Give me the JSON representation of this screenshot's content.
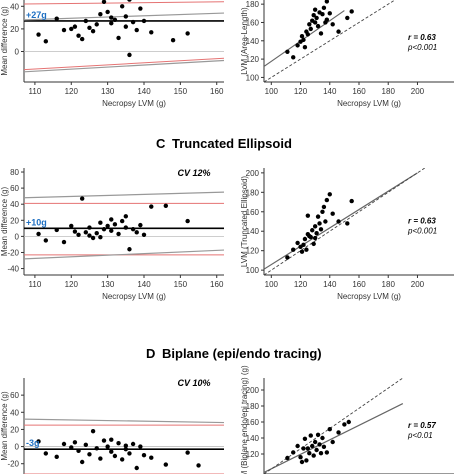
{
  "sections": [
    {
      "letter": "",
      "title": ""
    },
    {
      "letter": "C",
      "title": "Truncated Ellipsoid"
    },
    {
      "letter": "D",
      "title": "Biplane (epi/endo tracing)"
    }
  ],
  "chart_data": [
    {
      "type": "scatter",
      "subtype": "bland-altman",
      "row": 0,
      "col": 0,
      "ylabel": "Mean difference (g)",
      "xlabel": "Necropsy LVM (g)",
      "xlim": [
        107,
        162
      ],
      "ylim": [
        -27,
        50
      ],
      "xticks": [
        110,
        120,
        130,
        140,
        150,
        160
      ],
      "yticks": [
        0,
        20,
        40
      ],
      "cv_text": "",
      "bias_text": "+27g",
      "bias": 27,
      "lines": {
        "bias": [
          [
            107,
            27
          ],
          [
            162,
            27
          ]
        ],
        "upper_limit": [
          [
            107,
            42
          ],
          [
            162,
            44
          ]
        ],
        "lower_limit": [
          [
            107,
            -16
          ],
          [
            162,
            -6
          ]
        ],
        "upper_pi": [
          [
            107,
            28
          ],
          [
            162,
            34
          ]
        ],
        "lower_pi": [
          [
            107,
            -18
          ],
          [
            162,
            -8
          ]
        ],
        "zero": [
          [
            107,
            0
          ],
          [
            162,
            0
          ]
        ]
      },
      "points": [
        [
          111,
          15
        ],
        [
          113,
          9
        ],
        [
          116,
          29
        ],
        [
          118,
          19
        ],
        [
          120,
          20
        ],
        [
          121,
          22
        ],
        [
          122,
          14
        ],
        [
          123,
          11
        ],
        [
          124,
          27
        ],
        [
          125,
          21
        ],
        [
          126,
          18
        ],
        [
          127,
          24
        ],
        [
          128,
          33
        ],
        [
          129,
          44
        ],
        [
          130,
          35
        ],
        [
          131,
          25
        ],
        [
          131,
          30
        ],
        [
          132,
          28
        ],
        [
          133,
          12
        ],
        [
          134,
          40
        ],
        [
          135,
          31
        ],
        [
          135,
          22
        ],
        [
          136,
          46
        ],
        [
          137,
          26
        ],
        [
          138,
          19
        ],
        [
          139,
          38
        ],
        [
          140,
          27
        ],
        [
          142,
          17
        ],
        [
          148,
          10
        ],
        [
          152,
          16
        ],
        [
          136,
          -3
        ]
      ]
    },
    {
      "type": "scatter",
      "subtype": "correlation",
      "row": 0,
      "col": 1,
      "ylabel": "LVM (Area-Length)",
      "xlabel": "Necropsy LVM (g)",
      "xlim": [
        95,
        225
      ],
      "ylim": [
        95,
        190
      ],
      "xticks": [
        100,
        120,
        140,
        160,
        180,
        200
      ],
      "yticks": [
        100,
        120,
        140,
        160,
        180
      ],
      "r_text": "r = 0.63",
      "p_text": "p<0.001",
      "lines": {
        "regression": [
          [
            95,
            112
          ],
          [
            150,
            173
          ]
        ],
        "identity": [
          [
            95,
            95
          ],
          [
            190,
            190
          ]
        ]
      },
      "points": [
        [
          111,
          128
        ],
        [
          115,
          122
        ],
        [
          118,
          135
        ],
        [
          120,
          139
        ],
        [
          121,
          145
        ],
        [
          122,
          141
        ],
        [
          123,
          133
        ],
        [
          124,
          150
        ],
        [
          125,
          147
        ],
        [
          126,
          158
        ],
        [
          127,
          153
        ],
        [
          128,
          162
        ],
        [
          129,
          168
        ],
        [
          130,
          160
        ],
        [
          130,
          174
        ],
        [
          131,
          165
        ],
        [
          132,
          156
        ],
        [
          133,
          171
        ],
        [
          134,
          148
        ],
        [
          135,
          169
        ],
        [
          136,
          176
        ],
        [
          137,
          160
        ],
        [
          138,
          163
        ],
        [
          140,
          170
        ],
        [
          142,
          158
        ],
        [
          146,
          150
        ],
        [
          152,
          165
        ],
        [
          155,
          172
        ],
        [
          138,
          183
        ]
      ]
    },
    {
      "type": "scatter",
      "subtype": "bland-altman",
      "row": 1,
      "col": 0,
      "ylabel": "Mean difference (g)",
      "xlabel": "Necropsy LVM (g)",
      "xlim": [
        107,
        162
      ],
      "ylim": [
        -48,
        85
      ],
      "xticks": [
        110,
        120,
        130,
        140,
        150,
        160
      ],
      "yticks": [
        -40,
        -20,
        0,
        20,
        40,
        60,
        80
      ],
      "cv_text": "CV 12%",
      "bias_text": "+10g",
      "bias": 10,
      "lines": {
        "bias": [
          [
            107,
            10
          ],
          [
            162,
            10
          ]
        ],
        "upper_limit": [
          [
            107,
            41
          ],
          [
            162,
            41
          ]
        ],
        "lower_limit": [
          [
            107,
            -23
          ],
          [
            162,
            -23
          ]
        ],
        "upper_pi": [
          [
            107,
            48
          ],
          [
            162,
            55
          ]
        ],
        "lower_pi": [
          [
            107,
            -28
          ],
          [
            162,
            -17
          ]
        ],
        "zero": [
          [
            107,
            0
          ],
          [
            162,
            0
          ]
        ]
      },
      "points": [
        [
          111,
          3
        ],
        [
          113,
          -5
        ],
        [
          116,
          8
        ],
        [
          118,
          -7
        ],
        [
          120,
          13
        ],
        [
          121,
          6
        ],
        [
          122,
          2
        ],
        [
          123,
          47
        ],
        [
          124,
          5
        ],
        [
          125,
          11
        ],
        [
          126,
          -2
        ],
        [
          127,
          4
        ],
        [
          128,
          17
        ],
        [
          129,
          9
        ],
        [
          130,
          13
        ],
        [
          131,
          7
        ],
        [
          131,
          21
        ],
        [
          132,
          15
        ],
        [
          133,
          3
        ],
        [
          134,
          19
        ],
        [
          135,
          25
        ],
        [
          135,
          11
        ],
        [
          136,
          -16
        ],
        [
          137,
          9
        ],
        [
          138,
          5
        ],
        [
          139,
          14
        ],
        [
          140,
          2
        ],
        [
          142,
          37
        ],
        [
          146,
          38
        ],
        [
          152,
          19
        ],
        [
          128,
          -1
        ],
        [
          125,
          1
        ]
      ]
    },
    {
      "type": "scatter",
      "subtype": "correlation",
      "row": 1,
      "col": 1,
      "ylabel": "LVM (Truncated Ellipsoid)",
      "xlabel": "Necropsy LVM (g)",
      "xlim": [
        95,
        225
      ],
      "ylim": [
        95,
        205
      ],
      "xticks": [
        100,
        120,
        140,
        160,
        180,
        200
      ],
      "yticks": [
        100,
        120,
        140,
        160,
        180,
        200
      ],
      "r_text": "r = 0.63",
      "p_text": "p<0.001",
      "lines": {
        "regression": [
          [
            95,
            101
          ],
          [
            200,
            200
          ]
        ],
        "identity": [
          [
            95,
            95
          ],
          [
            205,
            205
          ]
        ]
      },
      "points": [
        [
          111,
          113
        ],
        [
          115,
          121
        ],
        [
          118,
          128
        ],
        [
          120,
          124
        ],
        [
          121,
          119
        ],
        [
          122,
          126
        ],
        [
          123,
          132
        ],
        [
          124,
          121
        ],
        [
          125,
          137
        ],
        [
          126,
          135
        ],
        [
          127,
          134
        ],
        [
          128,
          141
        ],
        [
          129,
          127
        ],
        [
          130,
          133
        ],
        [
          130,
          145
        ],
        [
          131,
          138
        ],
        [
          132,
          155
        ],
        [
          133,
          148
        ],
        [
          134,
          142
        ],
        [
          135,
          160
        ],
        [
          136,
          165
        ],
        [
          137,
          150
        ],
        [
          138,
          172
        ],
        [
          140,
          178
        ],
        [
          142,
          158
        ],
        [
          146,
          150
        ],
        [
          152,
          148
        ],
        [
          155,
          171
        ],
        [
          125,
          156
        ]
      ]
    },
    {
      "type": "scatter",
      "subtype": "bland-altman",
      "row": 2,
      "col": 0,
      "ylabel": "Mean difference (g)",
      "xlabel": "",
      "xlim": [
        107,
        162
      ],
      "ylim": [
        -32,
        80
      ],
      "xticks": [],
      "yticks": [
        -20,
        0,
        20,
        40,
        60
      ],
      "cv_text": "CV 10%",
      "bias_text": "-3g",
      "bias": -3,
      "lines": {
        "bias": [
          [
            107,
            -3
          ],
          [
            162,
            -3
          ]
        ],
        "upper_limit": [
          [
            107,
            25
          ],
          [
            162,
            25
          ]
        ],
        "lower_limit": [
          [
            107,
            -32
          ],
          [
            162,
            -32
          ]
        ],
        "upper_pi": [
          [
            107,
            32
          ],
          [
            162,
            28
          ]
        ],
        "lower_pi": [
          [
            107,
            -34
          ],
          [
            162,
            -34
          ]
        ],
        "zero": [
          [
            107,
            0
          ],
          [
            162,
            0
          ]
        ]
      },
      "points": [
        [
          111,
          6
        ],
        [
          113,
          -8
        ],
        [
          116,
          -12
        ],
        [
          118,
          3
        ],
        [
          120,
          -1
        ],
        [
          121,
          5
        ],
        [
          122,
          -5
        ],
        [
          123,
          -18
        ],
        [
          124,
          2
        ],
        [
          125,
          -9
        ],
        [
          126,
          18
        ],
        [
          127,
          -2
        ],
        [
          128,
          -14
        ],
        [
          129,
          7
        ],
        [
          130,
          0
        ],
        [
          131,
          -6
        ],
        [
          131,
          8
        ],
        [
          132,
          -11
        ],
        [
          133,
          4
        ],
        [
          134,
          -15
        ],
        [
          135,
          -3
        ],
        [
          135,
          1
        ],
        [
          136,
          -8
        ],
        [
          137,
          3
        ],
        [
          138,
          -25
        ],
        [
          139,
          0
        ],
        [
          140,
          -10
        ],
        [
          142,
          -13
        ],
        [
          146,
          -21
        ],
        [
          152,
          -7
        ],
        [
          155,
          -22
        ]
      ]
    },
    {
      "type": "scatter",
      "subtype": "correlation",
      "row": 2,
      "col": 1,
      "ylabel": "LVM (Biplane endo/epi tracing) (g)",
      "xlabel": "",
      "xlim": [
        95,
        225
      ],
      "ylim": [
        95,
        215
      ],
      "xticks": [],
      "yticks": [
        120,
        140,
        160,
        180,
        200
      ],
      "r_text": "r = 0.57",
      "p_text": "p<0.01",
      "lines": {
        "regression": [
          [
            95,
            97
          ],
          [
            190,
            183
          ]
        ],
        "identity": [
          [
            95,
            95
          ],
          [
            190,
            215
          ]
        ]
      },
      "points": [
        [
          111,
          115
        ],
        [
          115,
          122
        ],
        [
          118,
          130
        ],
        [
          120,
          116
        ],
        [
          121,
          110
        ],
        [
          122,
          127
        ],
        [
          123,
          139
        ],
        [
          124,
          112
        ],
        [
          125,
          127
        ],
        [
          126,
          121
        ],
        [
          127,
          143
        ],
        [
          128,
          130
        ],
        [
          129,
          118
        ],
        [
          130,
          135
        ],
        [
          131,
          125
        ],
        [
          132,
          144
        ],
        [
          133,
          132
        ],
        [
          134,
          121
        ],
        [
          135,
          140
        ],
        [
          136,
          129
        ],
        [
          138,
          122
        ],
        [
          140,
          151
        ],
        [
          142,
          135
        ],
        [
          146,
          147
        ],
        [
          150,
          157
        ],
        [
          153,
          160
        ]
      ]
    }
  ]
}
